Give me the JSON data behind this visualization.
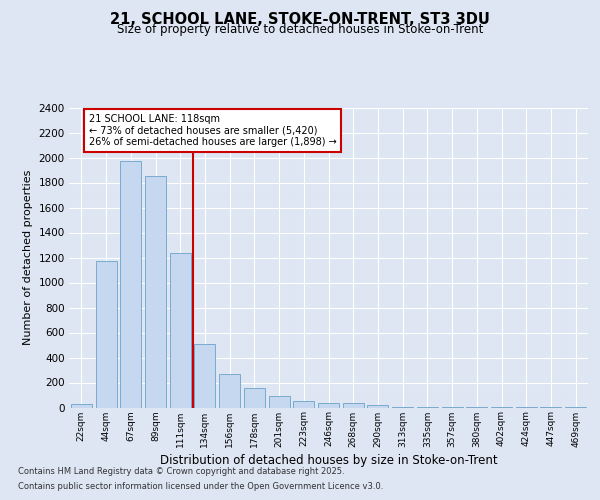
{
  "title_line1": "21, SCHOOL LANE, STOKE-ON-TRENT, ST3 3DU",
  "title_line2": "Size of property relative to detached houses in Stoke-on-Trent",
  "xlabel": "Distribution of detached houses by size in Stoke-on-Trent",
  "ylabel": "Number of detached properties",
  "categories": [
    "22sqm",
    "44sqm",
    "67sqm",
    "89sqm",
    "111sqm",
    "134sqm",
    "156sqm",
    "178sqm",
    "201sqm",
    "223sqm",
    "246sqm",
    "268sqm",
    "290sqm",
    "313sqm",
    "335sqm",
    "357sqm",
    "380sqm",
    "402sqm",
    "424sqm",
    "447sqm",
    "469sqm"
  ],
  "values": [
    30,
    1170,
    1970,
    1850,
    1240,
    510,
    270,
    155,
    90,
    50,
    40,
    35,
    20,
    5,
    5,
    3,
    2,
    2,
    2,
    2,
    2
  ],
  "bar_color": "#c5d8f0",
  "bar_edge_color": "#7aaad0",
  "annotation_line1": "21 SCHOOL LANE: 118sqm",
  "annotation_line2": "← 73% of detached houses are smaller (5,420)",
  "annotation_line3": "26% of semi-detached houses are larger (1,898) →",
  "annotation_box_edge": "#cc0000",
  "ylim": [
    0,
    2400
  ],
  "yticks": [
    0,
    200,
    400,
    600,
    800,
    1000,
    1200,
    1400,
    1600,
    1800,
    2000,
    2200,
    2400
  ],
  "footer_line1": "Contains HM Land Registry data © Crown copyright and database right 2025.",
  "footer_line2": "Contains public sector information licensed under the Open Government Licence v3.0.",
  "bg_color": "#dde6f2",
  "plot_bg_color": "#dde6f2",
  "grid_color": "#ffffff",
  "red_line_color": "#cc0000"
}
